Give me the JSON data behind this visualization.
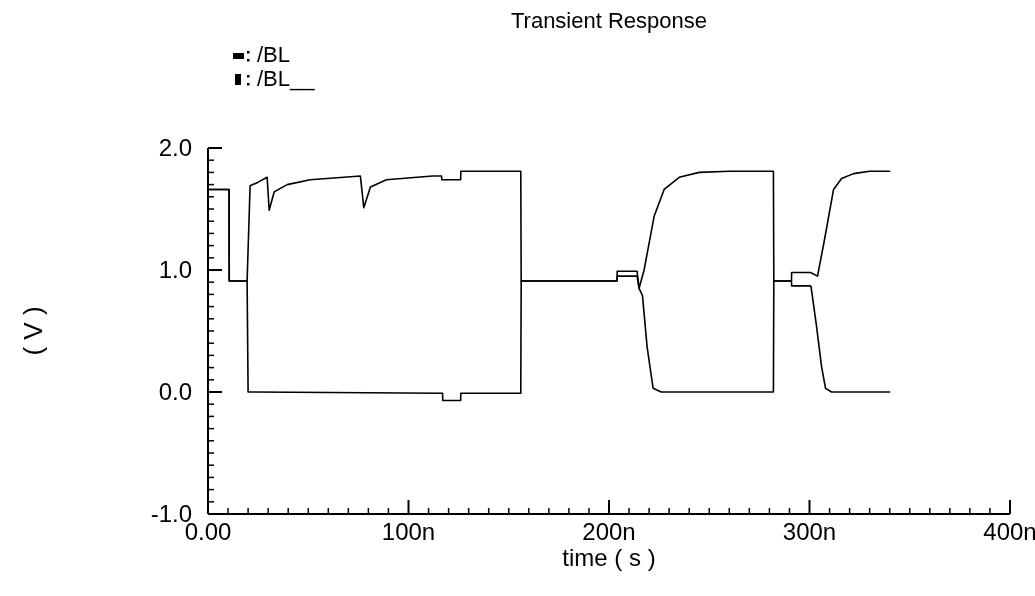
{
  "chart_data": {
    "type": "line",
    "title": "Transient Response",
    "xlabel": "time ( s )",
    "ylabel": "( V )",
    "xlim": [
      0,
      400
    ],
    "ylim": [
      -1,
      2
    ],
    "xticks": [
      {
        "value": 0,
        "label": "0.00"
      },
      {
        "value": 100,
        "label": "100n"
      },
      {
        "value": 200,
        "label": "200n"
      },
      {
        "value": 300,
        "label": "300n"
      },
      {
        "value": 400,
        "label": "400n"
      }
    ],
    "yticks": [
      {
        "value": -1,
        "label": "-1.0"
      },
      {
        "value": 0,
        "label": "0.0"
      },
      {
        "value": 1,
        "label": "1.0"
      },
      {
        "value": 2,
        "label": "2.0"
      }
    ],
    "grid": false,
    "legend": "top left",
    "line_style": "solid",
    "series": [
      {
        "name": "/BL",
        "color": "#000000",
        "x": [
          0,
          10.5,
          10.6,
          19.5,
          21,
          25,
          29.5,
          30.5,
          33,
          39.5,
          51,
          76,
          77.7,
          81,
          89,
          112,
          116.5,
          116.6,
          126,
          126.1,
          156,
          156.2,
          204,
          204.1,
          214,
          215,
          217.5,
          222.5,
          227.5,
          235,
          245,
          260,
          282,
          282.2,
          291,
          291.1,
          300.5,
          304,
          307.5,
          312,
          316,
          322,
          330,
          340
        ],
        "values": [
          1.66,
          1.66,
          0.91,
          0.91,
          1.69,
          1.72,
          1.76,
          1.49,
          1.64,
          1.7,
          1.74,
          1.77,
          1.51,
          1.68,
          1.74,
          1.77,
          1.77,
          1.74,
          1.74,
          1.81,
          1.81,
          0.91,
          0.91,
          0.99,
          0.99,
          0.85,
          1.0,
          1.44,
          1.66,
          1.76,
          1.8,
          1.81,
          1.81,
          0.91,
          0.91,
          0.98,
          0.98,
          0.95,
          1.25,
          1.66,
          1.75,
          1.79,
          1.81,
          1.81
        ]
      },
      {
        "name": "/BL__",
        "color": "#000000",
        "x": [
          0,
          10.5,
          10.6,
          19.5,
          20,
          117,
          117.1,
          126,
          126.1,
          156,
          156.2,
          204,
          204.1,
          214,
          215,
          216.7,
          219,
          222,
          226,
          282,
          282.2,
          291,
          291.1,
          300.5,
          300.8,
          303.5,
          306,
          308,
          311,
          340
        ],
        "values": [
          1.66,
          1.66,
          0.91,
          0.91,
          0.0,
          -0.01,
          -0.07,
          -0.07,
          -0.01,
          -0.01,
          0.91,
          0.91,
          0.95,
          0.95,
          0.85,
          0.79,
          0.37,
          0.03,
          0.0,
          0.0,
          0.91,
          0.91,
          0.87,
          0.87,
          0.86,
          0.54,
          0.21,
          0.03,
          0.0,
          0.0
        ]
      }
    ]
  }
}
